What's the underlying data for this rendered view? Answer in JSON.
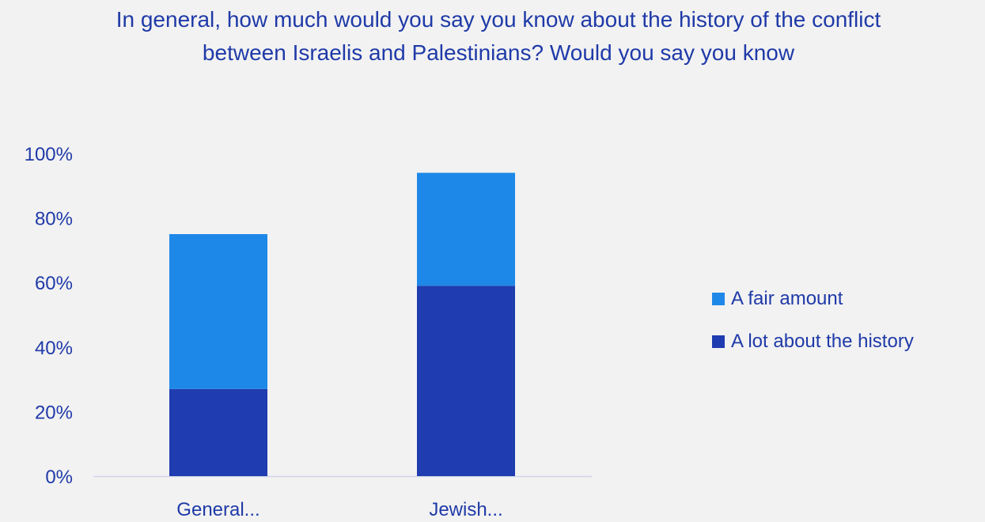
{
  "chart_data": {
    "type": "bar",
    "stacked": true,
    "title": "In general, how much would you say you know about the history of the conflict between Israelis and Palestinians? Would you say you know",
    "categories": [
      "General...",
      "Jewish..."
    ],
    "series": [
      {
        "name": "A lot about the history",
        "values": [
          27,
          59
        ],
        "color": "#1f3cb0"
      },
      {
        "name": "A fair amount",
        "values": [
          48,
          35
        ],
        "color": "#1e88e8"
      }
    ],
    "ylim": [
      0,
      100
    ],
    "yticks": [
      "0%",
      "20%",
      "40%",
      "60%",
      "80%",
      "100%"
    ],
    "xlabel": "",
    "ylabel": "",
    "grid": false,
    "legend_position": "right"
  },
  "colors": {
    "text": "#1f3aa8",
    "axis_line": "#d0d4e8",
    "background": "#f2f2f2"
  }
}
